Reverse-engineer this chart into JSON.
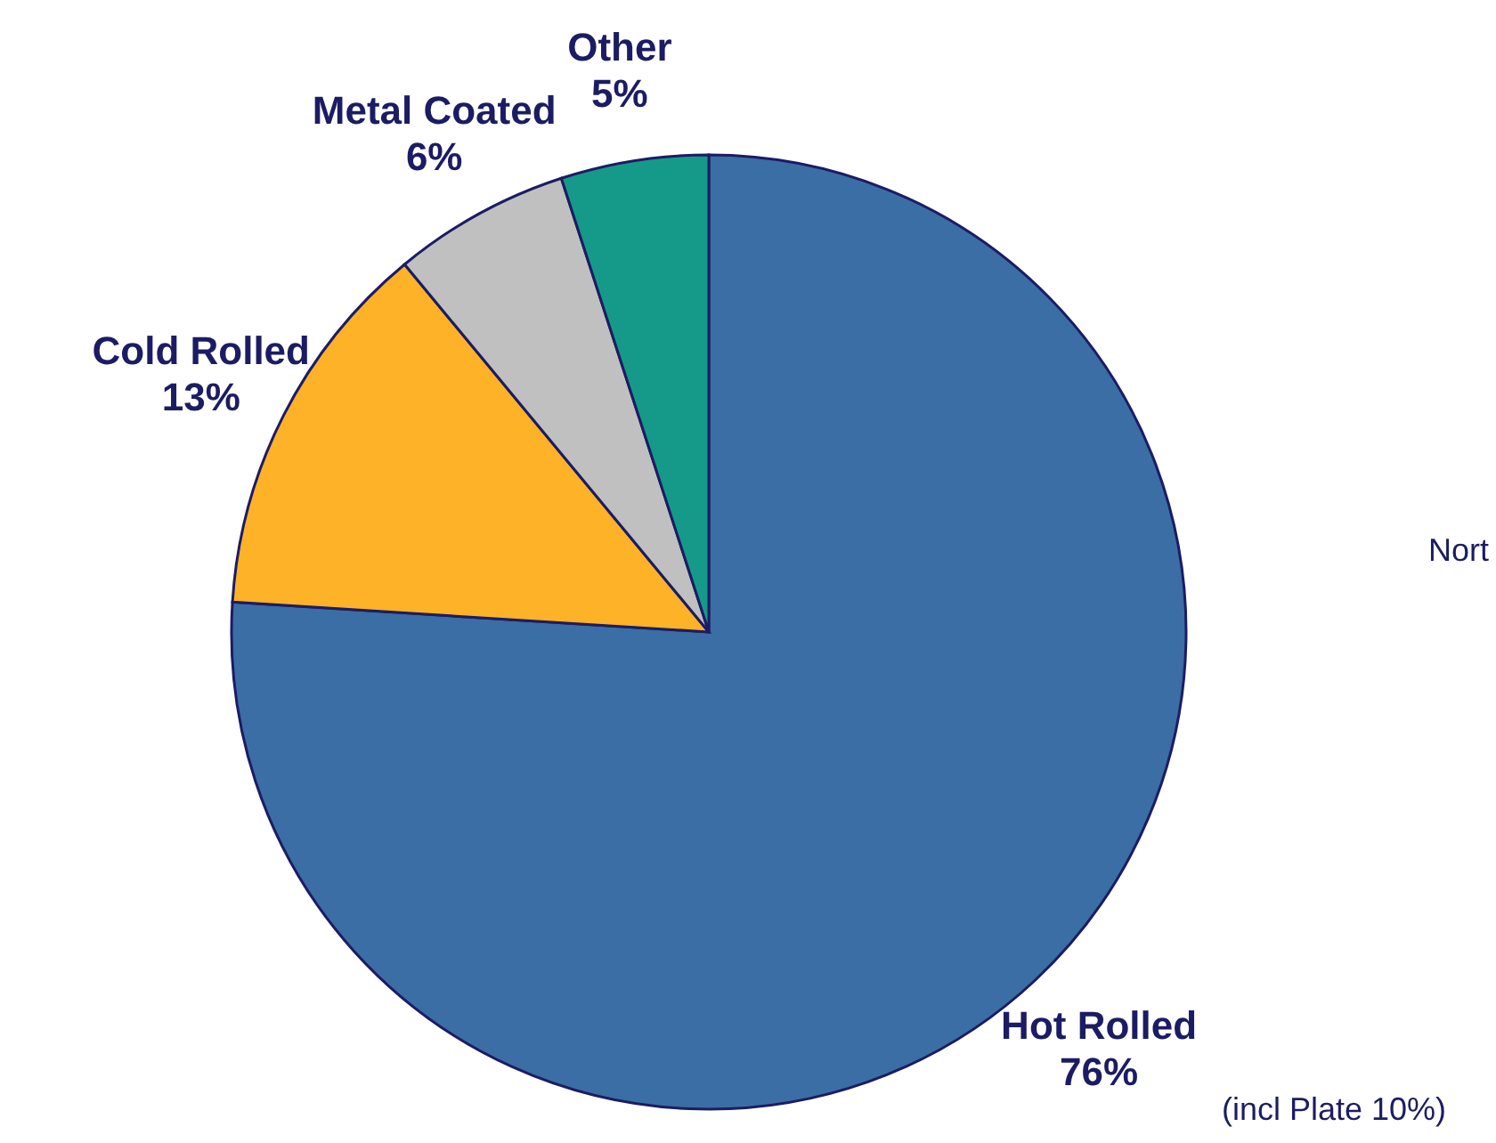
{
  "chart_data": {
    "type": "pie",
    "categories": [
      "Hot Rolled",
      "Cold Rolled",
      "Metal Coated",
      "Other"
    ],
    "values": [
      76,
      13,
      6,
      5
    ],
    "colors": [
      "#3a6ea5",
      "#fdb227",
      "#c0c0c0",
      "#159a8a"
    ],
    "value_labels": [
      "76%",
      "13%",
      "6%",
      "5%"
    ],
    "annotations": [
      "(incl Plate 10%)",
      "Nort"
    ]
  }
}
